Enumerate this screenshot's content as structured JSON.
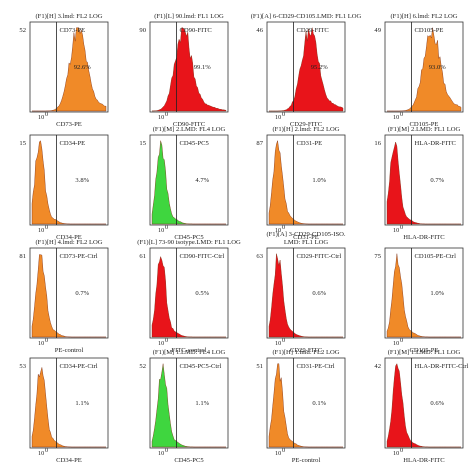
{
  "panels": [
    {
      "title": [
        "(F1)[H] 3.lmd: FL2 LOG"
      ],
      "ymax": "52",
      "marker": "CD73-PE",
      "pct": "92.6%",
      "xlabel": "CD73-PE",
      "color": "#f08a28",
      "peak": 0.62,
      "hscale": 1.0
    },
    {
      "title": [
        "(F1)[L] 90.lmd: FL1 LOG"
      ],
      "ymax": "90",
      "marker": "CD90-FITC",
      "pct": "99.1%",
      "xlabel": "CD90-FITC",
      "color": "#e8141a",
      "peak": 0.42,
      "hscale": 1.0
    },
    {
      "title": [
        "(F1)[A] 6-CD29-CD105.LMD: FL1 LOG"
      ],
      "ymax": "46",
      "marker": "CD29-FITC",
      "pct": "95.2%",
      "xlabel": "CD29-FITC",
      "color": "#e8141a",
      "peak": 0.55,
      "hscale": 1.0
    },
    {
      "title": [
        "(F1)[H] 6.lmd: FL2 LOG"
      ],
      "ymax": "49",
      "marker": "CD105-PE",
      "pct": "93.0%",
      "xlabel": "CD105-PE",
      "color": "#f08a28",
      "peak": 0.6,
      "hscale": 1.0
    },
    {
      "title": [
        ""
      ],
      "ymax": "15",
      "marker": "CD34-PE",
      "pct": "3.8%",
      "xlabel": "CD34-PE",
      "color": "#f08a28",
      "peak": 0.1,
      "hscale": 1.0
    },
    {
      "title": [
        "(F1)[M] 2.LMD: FL4 LOG"
      ],
      "ymax": "15",
      "marker": "CD45-PC5",
      "pct": "4.7%",
      "xlabel": "CD45-PC5",
      "color": "#3fd63f",
      "peak": 0.12,
      "hscale": 1.0
    },
    {
      "title": [
        "(F1)[H] 2.lmd: FL2 LOG"
      ],
      "ymax": "87",
      "marker": "CD31-PE",
      "pct": "1.0%",
      "xlabel": "CD31-PE",
      "color": "#f08a28",
      "peak": 0.12,
      "hscale": 1.0
    },
    {
      "title": [
        "(F1)[M] 2.LMD: FL1 LOG"
      ],
      "ymax": "16",
      "marker": "HLA-DR-FITC",
      "pct": "0.7%",
      "xlabel": "HLA-DR-FITC",
      "color": "#e8141a",
      "peak": 0.1,
      "hscale": 1.0
    },
    {
      "title": [
        "(F1)[H] 4.lmd: FL2 LOG"
      ],
      "ymax": "81",
      "marker": "CD73-PE-Ctrl",
      "pct": "0.7%",
      "xlabel": "PE-control",
      "color": "#f08a28",
      "peak": 0.12,
      "hscale": 1.0
    },
    {
      "title": [
        "(F1)[L] 73-90 isotype.LMD: FL1 LOG"
      ],
      "ymax": "61",
      "marker": "CD90-FITC-Ctrl",
      "pct": "0.5%",
      "xlabel": "FITC-control",
      "color": "#e8141a",
      "peak": 0.12,
      "hscale": 1.0
    },
    {
      "title": [
        "(F1)[A] 3-CD29-CD105-ISO.",
        "LMD: FL1 LOG"
      ],
      "ymax": "63",
      "marker": "CD29-FITC-Ctrl",
      "pct": "0.6%",
      "xlabel": "CD29-FITC",
      "color": "#e8141a",
      "peak": 0.12,
      "hscale": 1.0
    },
    {
      "title": [
        ""
      ],
      "ymax": "75",
      "marker": "CD105-PE-Ctrl",
      "pct": "1.0%",
      "xlabel": "CD105-PE",
      "color": "#f08a28",
      "peak": 0.14,
      "hscale": 1.0
    },
    {
      "title": [
        ""
      ],
      "ymax": "53",
      "marker": "CD34-PE-Ctrl",
      "pct": "1.1%",
      "xlabel": "CD34-PE",
      "color": "#f08a28",
      "peak": 0.12,
      "hscale": 1.0
    },
    {
      "title": [
        "(F1)[M] 1.LMD: FL4 LOG"
      ],
      "ymax": "52",
      "marker": "CD45-PC5-Ctrl",
      "pct": "1.1%",
      "xlabel": "CD45-PC5",
      "color": "#3fd63f",
      "peak": 0.14,
      "hscale": 1.0
    },
    {
      "title": [
        "(F1)[H] 1.lmd: FL2 LOG"
      ],
      "ymax": "51",
      "marker": "CD31-PE-Ctrl",
      "pct": "0.1%",
      "xlabel": "PE-control",
      "color": "#f08a28",
      "peak": 0.12,
      "hscale": 1.0
    },
    {
      "title": [
        "(F1)[M] 1.LMD: FL1 LOG"
      ],
      "ymax": "42",
      "marker": "HLA-DR-FITC-Ctrl",
      "pct": "0.6%",
      "xlabel": "HLA-DR-FITC",
      "color": "#e8141a",
      "peak": 0.14,
      "hscale": 1.0
    }
  ],
  "axis": {
    "tick_x": "10",
    "tick_x_exp": "0"
  }
}
